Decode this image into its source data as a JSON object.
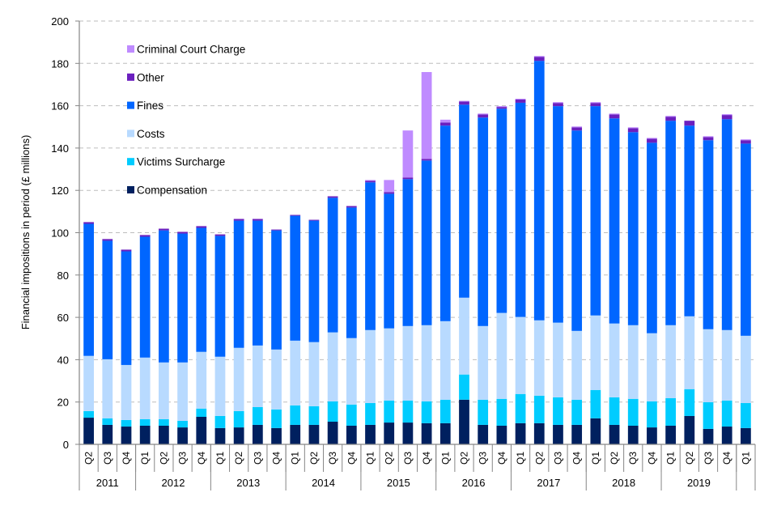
{
  "chart_data": {
    "type": "bar",
    "stacked": true,
    "title": "",
    "xlabel": "",
    "ylabel": "Financial impositions in period (£ millions)",
    "ylim": [
      0,
      200
    ],
    "yticks": [
      0,
      20,
      40,
      60,
      80,
      100,
      120,
      140,
      160,
      180,
      200
    ],
    "grid": true,
    "legend_position": "top-left",
    "categories": [
      "2011 Q2",
      "2011 Q3",
      "2011 Q4",
      "2012 Q1",
      "2012 Q2",
      "2012 Q3",
      "2012 Q4",
      "2013 Q1",
      "2013 Q2",
      "2013 Q3",
      "2013 Q4",
      "2014 Q1",
      "2014 Q2",
      "2014 Q3",
      "2014 Q4",
      "2015 Q1",
      "2015 Q2",
      "2015 Q3",
      "2015 Q4",
      "2016 Q1",
      "2016 Q2",
      "2016 Q3",
      "2016 Q4",
      "2017 Q1",
      "2017 Q2",
      "2017 Q3",
      "2017 Q4",
      "2018 Q1",
      "2018 Q2",
      "2018 Q3",
      "2018 Q4",
      "2019 Q1",
      "2019 Q2",
      "2019 Q3",
      "2019 Q4",
      "2020 Q1"
    ],
    "quarter_labels": [
      "Q2",
      "Q3",
      "Q4",
      "Q1",
      "Q2",
      "Q3",
      "Q4",
      "Q1",
      "Q2",
      "Q3",
      "Q4",
      "Q1",
      "Q2",
      "Q3",
      "Q4",
      "Q1",
      "Q2",
      "Q3",
      "Q4",
      "Q1",
      "Q2",
      "Q3",
      "Q4",
      "Q1",
      "Q2",
      "Q3",
      "Q4",
      "Q1",
      "Q2",
      "Q3",
      "Q4",
      "Q1",
      "Q2",
      "Q3",
      "Q4",
      "Q1"
    ],
    "year_groups": [
      {
        "label": "2011",
        "count": 3
      },
      {
        "label": "2012",
        "count": 4
      },
      {
        "label": "2013",
        "count": 4
      },
      {
        "label": "2014",
        "count": 4
      },
      {
        "label": "2015",
        "count": 4
      },
      {
        "label": "2016",
        "count": 4
      },
      {
        "label": "2017",
        "count": 4
      },
      {
        "label": "2018",
        "count": 4
      },
      {
        "label": "2019",
        "count": 4
      },
      {
        "label": "",
        "count": 1
      }
    ],
    "series": [
      {
        "name": "Compensation",
        "color": "#00205F",
        "values": [
          12.6,
          9.2,
          8.4,
          8.8,
          8.8,
          8.0,
          13.0,
          7.7,
          8.0,
          9.2,
          7.7,
          9.2,
          9.2,
          10.7,
          8.8,
          9.2,
          10.3,
          10.3,
          10.0,
          10.0,
          21.1,
          9.2,
          8.8,
          10.0,
          10.0,
          9.2,
          9.2,
          12.3,
          9.2,
          8.8,
          8.0,
          8.8,
          13.4,
          7.3,
          8.4,
          7.7
        ]
      },
      {
        "name": "Victims Surcharge",
        "color": "#00CCFF",
        "values": [
          3.1,
          3.1,
          3.1,
          3.1,
          3.1,
          3.1,
          3.9,
          5.7,
          7.7,
          8.4,
          8.8,
          9.2,
          8.8,
          9.6,
          10.0,
          10.3,
          10.4,
          10.4,
          10.3,
          11.1,
          11.9,
          11.9,
          12.7,
          13.8,
          13.0,
          13.0,
          11.9,
          13.4,
          13.0,
          12.7,
          12.3,
          13.0,
          12.7,
          12.6,
          12.3,
          11.8
        ]
      },
      {
        "name": "Costs",
        "color": "#B8DAFF",
        "values": [
          26.1,
          27.9,
          26.0,
          29.1,
          26.8,
          27.6,
          26.8,
          28.0,
          29.9,
          29.1,
          28.3,
          30.6,
          30.3,
          32.6,
          31.4,
          34.5,
          34.1,
          35.2,
          36.0,
          37.1,
          36.3,
          34.8,
          40.6,
          36.4,
          35.6,
          35.3,
          32.5,
          35.2,
          34.9,
          34.8,
          32.2,
          34.5,
          34.4,
          34.5,
          33.3,
          31.8
        ]
      },
      {
        "name": "Fines",
        "color": "#0066FF",
        "values": [
          62.4,
          56.0,
          53.7,
          57.1,
          62.4,
          60.9,
          58.6,
          57.1,
          60.1,
          59.0,
          56.3,
          59.0,
          57.4,
          63.6,
          61.7,
          69.8,
          63.6,
          69.4,
          77.8,
          92.4,
          91.2,
          98.5,
          96.5,
          101.2,
          122.6,
          102.3,
          94.7,
          98.9,
          96.9,
          91.2,
          90.0,
          96.6,
          90.1,
          89.3,
          99.6,
          90.8
        ]
      },
      {
        "name": "Other",
        "color": "#6B1FBF",
        "values": [
          0.8,
          0.8,
          0.8,
          0.8,
          0.8,
          0.8,
          0.8,
          0.7,
          0.8,
          0.8,
          0.4,
          0.4,
          0.4,
          0.7,
          0.7,
          0.7,
          0.8,
          0.8,
          0.8,
          1.5,
          1.5,
          1.5,
          0.8,
          1.5,
          1.9,
          1.5,
          1.5,
          1.5,
          1.9,
          1.9,
          1.9,
          1.9,
          2.3,
          1.5,
          2.0,
          1.6
        ]
      },
      {
        "name": "Criminal Court Charge",
        "color": "#BF8BFF",
        "values": [
          0,
          0,
          0,
          0,
          0,
          0,
          0,
          0,
          0,
          0,
          0,
          0,
          0,
          0,
          0,
          0.4,
          5.7,
          22.2,
          41.0,
          1.3,
          0.3,
          0.4,
          0.4,
          0.4,
          0.4,
          0.4,
          0.4,
          0.4,
          0.4,
          0.4,
          0.4,
          0.4,
          0,
          0.4,
          0.4,
          0.4
        ]
      }
    ],
    "legend_order": [
      "Criminal Court Charge",
      "Other",
      "Fines",
      "Costs",
      "Victims Surcharge",
      "Compensation"
    ]
  }
}
